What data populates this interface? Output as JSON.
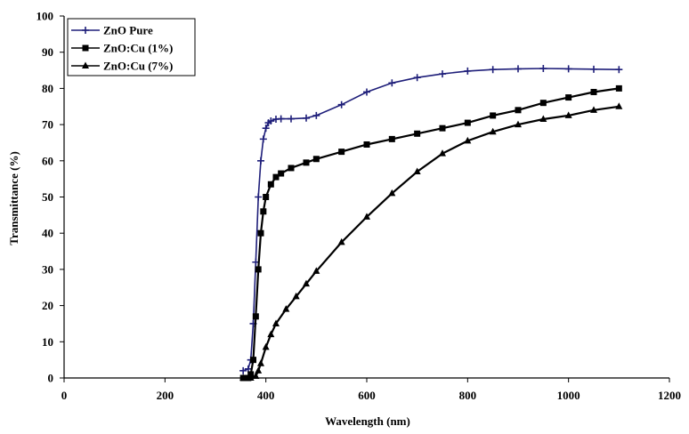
{
  "chart_data": {
    "type": "line",
    "title": "",
    "xlabel": "Wavelength (nm)",
    "ylabel": "Transmittance (%)",
    "xlim": [
      0,
      1200
    ],
    "ylim": [
      0,
      100
    ],
    "xticks": [
      0,
      200,
      400,
      600,
      800,
      1000,
      1200
    ],
    "yticks": [
      0,
      10,
      20,
      30,
      40,
      50,
      60,
      70,
      80,
      90,
      100
    ],
    "grid": false,
    "legend_position": "top-left",
    "series": [
      {
        "name": "ZnO Pure",
        "color": "#1f1f7a",
        "marker": "plus",
        "x": [
          355,
          365,
          370,
          375,
          380,
          385,
          390,
          395,
          400,
          405,
          410,
          420,
          430,
          450,
          480,
          500,
          550,
          600,
          650,
          700,
          750,
          800,
          850,
          900,
          950,
          1000,
          1050,
          1100
        ],
        "y": [
          2,
          2.5,
          5,
          15,
          32,
          50,
          60,
          66,
          69,
          70.5,
          71,
          71.5,
          71.6,
          71.6,
          71.8,
          72.5,
          75.5,
          79,
          81.5,
          83,
          84,
          84.8,
          85.2,
          85.4,
          85.5,
          85.4,
          85.3,
          85.2
        ]
      },
      {
        "name": "ZnO:Cu (1%)",
        "color": "#000000",
        "marker": "square",
        "x": [
          355,
          365,
          370,
          375,
          380,
          385,
          390,
          395,
          400,
          410,
          420,
          430,
          450,
          480,
          500,
          550,
          600,
          650,
          700,
          750,
          800,
          850,
          900,
          950,
          1000,
          1050,
          1100
        ],
        "y": [
          0,
          0,
          1,
          5,
          17,
          30,
          40,
          46,
          50,
          53.5,
          55.5,
          56.5,
          58,
          59.5,
          60.5,
          62.5,
          64.5,
          66,
          67.5,
          69,
          70.5,
          72.5,
          74,
          76,
          77.5,
          79,
          80
        ]
      },
      {
        "name": "ZnO:Cu (7%)",
        "color": "#000000",
        "marker": "triangle",
        "x": [
          355,
          370,
          380,
          385,
          390,
          400,
          410,
          420,
          440,
          460,
          480,
          500,
          550,
          600,
          650,
          700,
          750,
          800,
          850,
          900,
          950,
          1000,
          1050,
          1100
        ],
        "y": [
          0,
          0,
          0.5,
          2,
          4,
          8.5,
          12,
          15,
          19,
          22.5,
          26,
          29.5,
          37.5,
          44.5,
          51,
          57,
          62,
          65.5,
          68,
          70,
          71.5,
          72.5,
          74,
          75
        ]
      }
    ]
  }
}
